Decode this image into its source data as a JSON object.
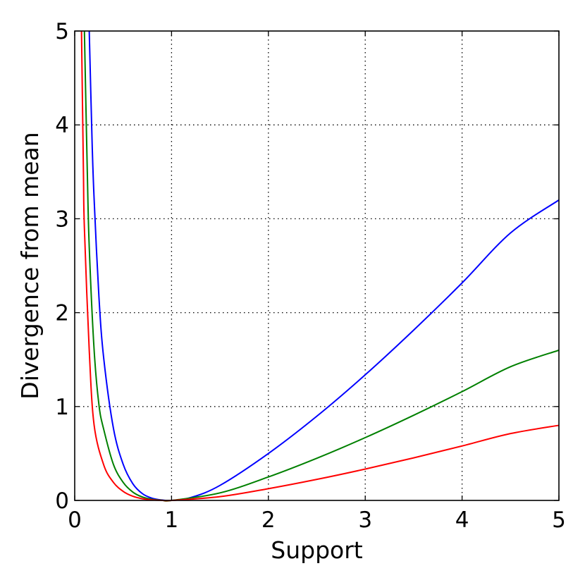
{
  "chart_data": {
    "type": "line",
    "title": "",
    "xlabel": "Support",
    "ylabel": "Divergence from mean",
    "xlim": [
      0,
      5
    ],
    "ylim": [
      0,
      5
    ],
    "xticks": [
      0,
      1,
      2,
      3,
      4,
      5
    ],
    "yticks": [
      0,
      1,
      2,
      3,
      4,
      5
    ],
    "grid": true,
    "legend": "none",
    "series": [
      {
        "color": "#0000ff",
        "x": [
          0.15,
          0.18,
          0.2,
          0.25,
          0.3,
          0.4,
          0.5,
          0.6,
          0.7,
          0.8,
          0.9,
          1.0,
          1.2,
          1.5,
          2.0,
          2.5,
          3.0,
          3.5,
          4.0,
          4.5,
          5.0
        ],
        "y": [
          5.0,
          3.8,
          3.22,
          2.17,
          1.51,
          0.767,
          0.386,
          0.178,
          0.0713,
          0.0232,
          0.0046,
          0.0,
          0.0309,
          0.16,
          0.5,
          0.897,
          1.338,
          1.814,
          2.317,
          2.849,
          3.2
        ]
      },
      {
        "color": "#008000",
        "x": [
          0.1,
          0.13,
          0.15,
          0.2,
          0.25,
          0.3,
          0.4,
          0.5,
          0.6,
          0.7,
          0.8,
          0.9,
          1.0,
          1.5,
          2.0,
          2.5,
          3.0,
          3.5,
          4.0,
          4.5,
          5.0
        ],
        "y": [
          5.0,
          3.5,
          2.7,
          1.61,
          1.02,
          0.755,
          0.383,
          0.193,
          0.089,
          0.0357,
          0.0116,
          0.0023,
          0.0,
          0.08,
          0.25,
          0.449,
          0.669,
          0.907,
          1.159,
          1.424,
          1.6
        ]
      },
      {
        "color": "#ff0000",
        "x": [
          0.07,
          0.09,
          0.1,
          0.15,
          0.2,
          0.3,
          0.4,
          0.5,
          0.6,
          0.7,
          0.8,
          0.9,
          1.0,
          1.5,
          2.0,
          2.5,
          3.0,
          3.5,
          4.0,
          4.5,
          5.0
        ],
        "y": [
          5.0,
          3.5,
          2.9,
          1.6,
          0.805,
          0.377,
          0.192,
          0.0966,
          0.0445,
          0.0178,
          0.0058,
          0.0012,
          0.0,
          0.04,
          0.125,
          0.224,
          0.334,
          0.453,
          0.58,
          0.712,
          0.8
        ]
      }
    ]
  }
}
